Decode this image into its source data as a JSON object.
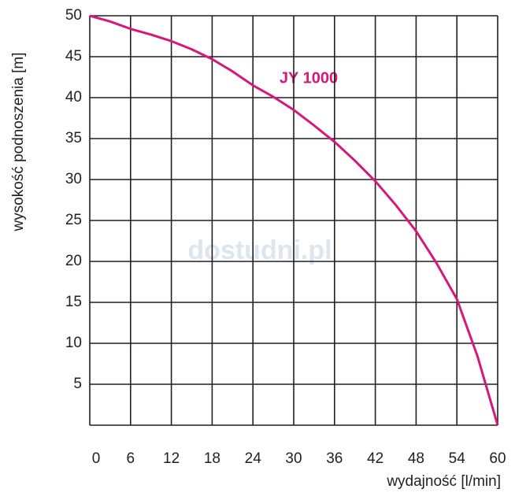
{
  "chart_data": {
    "type": "line",
    "x_label": "wydajność [l/min]",
    "y_label": "wysokość podnoszenia [m]",
    "watermark": "dostudni.pl",
    "x": [
      0,
      3,
      6,
      9,
      12,
      15,
      18,
      21,
      24,
      27,
      30,
      33,
      36,
      39,
      42,
      45,
      48,
      51,
      54,
      57,
      60
    ],
    "series": [
      {
        "name": "JY 1000",
        "color": "#d4187c",
        "values": [
          50,
          49.3,
          48.4,
          47.7,
          46.9,
          45.9,
          44.7,
          43.2,
          41.5,
          40.1,
          38.5,
          36.6,
          34.6,
          32.3,
          29.8,
          26.9,
          23.7,
          19.8,
          15.4,
          8.5,
          0
        ]
      }
    ],
    "xlim": [
      0,
      60
    ],
    "xticks": [
      0,
      6,
      12,
      18,
      24,
      30,
      36,
      42,
      48,
      54,
      60
    ],
    "ylim": [
      0,
      50
    ],
    "yticks": [
      5,
      10,
      15,
      20,
      25,
      30,
      35,
      40,
      45,
      50
    ],
    "grid": true
  }
}
